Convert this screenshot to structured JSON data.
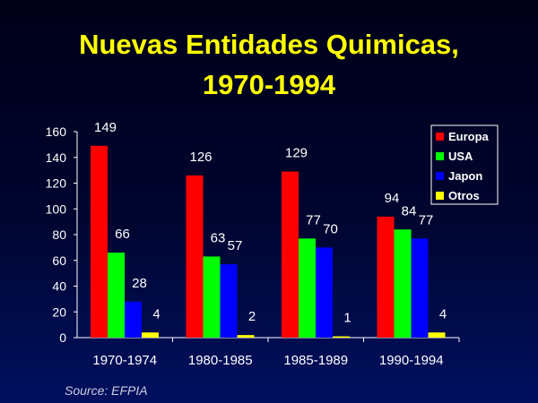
{
  "chart_data": {
    "type": "bar",
    "title": [
      "Nuevas Entidades Quimicas,",
      "1970-1994"
    ],
    "categories": [
      "1970-1974",
      "1980-1985",
      "1985-1989",
      "1990-1994"
    ],
    "series": [
      {
        "name": "Europa",
        "color": "#ff0000",
        "values": [
          149,
          126,
          129,
          94
        ]
      },
      {
        "name": "USA",
        "color": "#00ff00",
        "values": [
          66,
          63,
          77,
          84
        ]
      },
      {
        "name": "Japon",
        "color": "#0000ff",
        "values": [
          28,
          57,
          70,
          77
        ]
      },
      {
        "name": "Otros",
        "color": "#ffff00",
        "values": [
          4,
          2,
          1,
          4
        ]
      }
    ],
    "ylim": [
      0,
      160
    ],
    "yticks": [
      0,
      20,
      40,
      60,
      80,
      100,
      120,
      140,
      160
    ],
    "grid": false,
    "legend": "top-right",
    "source": "Source: EFPIA"
  }
}
